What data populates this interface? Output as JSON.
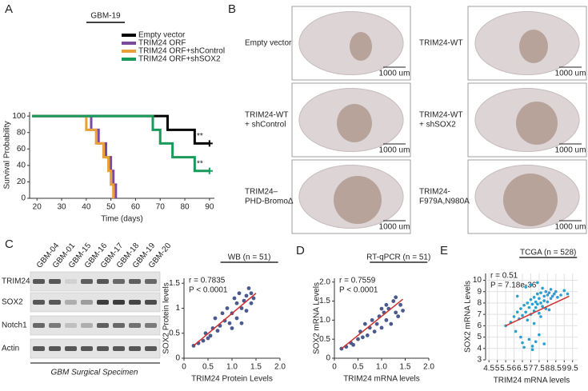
{
  "panels": [
    "A",
    "B",
    "C",
    "D",
    "E"
  ],
  "chart_data": [
    {
      "type": "line",
      "step": "post",
      "title": "GBM-19",
      "x_label": "Time (days)",
      "y_label": "Survival Probability",
      "xlim": [
        17,
        92
      ],
      "xticks": [
        20,
        30,
        40,
        50,
        60,
        70,
        80,
        90
      ],
      "ylim": [
        0,
        105
      ],
      "yticks": [
        0,
        20,
        40,
        60,
        80,
        100
      ],
      "grid": false,
      "legend": "above right",
      "series": [
        {
          "name": "Empty vector",
          "color": "#000000",
          "x": [
            18,
            73,
            84,
            90
          ],
          "values": [
            100,
            83.3,
            66.7,
            66.7
          ],
          "annotation": "**"
        },
        {
          "name": "TRIM24 ORF",
          "color": "#7b4a9a",
          "x": [
            18,
            42,
            45,
            48,
            50,
            51,
            52
          ],
          "values": [
            100,
            83.3,
            66.7,
            50,
            33.3,
            16.7,
            0
          ]
        },
        {
          "name": "TRIM24 ORF+shControl",
          "color": "#e8a03c",
          "x": [
            18,
            40,
            44,
            47,
            49,
            50,
            51
          ],
          "values": [
            100,
            83.3,
            66.7,
            50,
            33.3,
            16.7,
            0
          ]
        },
        {
          "name": "TRIM24 ORF+shSOX2",
          "color": "#1a9a5a",
          "x": [
            18,
            67,
            70,
            75,
            84,
            90
          ],
          "values": [
            100,
            83.3,
            66.7,
            50,
            33.3,
            33.3
          ],
          "annotation": "**"
        }
      ]
    },
    {
      "type": "scatter",
      "title": "WB (n = 51)",
      "stats": [
        "r = 0.7835",
        "P < 0.0001"
      ],
      "x_label": "TRIM24 Protein Levels",
      "y_label": "SOX2 Protein levels",
      "xlim": [
        0,
        2
      ],
      "xticks": [
        0,
        0.5,
        {
          "value": 1,
          "label": "1.0"
        },
        1.5,
        {
          "value": 2,
          "label": "2.0"
        }
      ],
      "ylim": [
        0,
        1.6
      ],
      "yticks": [
        0,
        0.5,
        1,
        1.5
      ],
      "grid": false,
      "color": "#4a5a8c",
      "x": [
        0.2,
        0.3,
        0.4,
        0.45,
        0.5,
        0.55,
        0.6,
        0.7,
        0.75,
        0.8,
        0.85,
        0.9,
        0.95,
        1.0,
        1.05,
        1.1,
        1.1,
        1.15,
        1.2,
        1.2,
        1.25,
        1.3,
        1.3,
        1.35,
        1.4,
        1.4,
        1.45,
        1.0,
        0.65
      ],
      "values": [
        0.25,
        0.3,
        0.35,
        0.5,
        0.4,
        0.45,
        0.6,
        0.55,
        0.65,
        0.9,
        0.75,
        1.0,
        0.7,
        0.9,
        1.2,
        0.8,
        1.1,
        1.3,
        1.0,
        0.7,
        1.15,
        1.25,
        0.95,
        1.4,
        1.1,
        1.3,
        1.2,
        0.6,
        0.8
      ],
      "fit": {
        "color": "#d03030",
        "x": [
          0.2,
          1.5
        ],
        "y": [
          0.25,
          1.3
        ]
      }
    },
    {
      "type": "scatter",
      "title": "RT-qPCR (n = 51)",
      "stats": [
        "r = 0.7559",
        "P < 0.0001"
      ],
      "x_label": "TRIM24 mRNA levels",
      "y_label": "SOX2 mRNA Levels",
      "xlim": [
        0,
        2
      ],
      "xticks": [
        0,
        0.5,
        {
          "value": 1,
          "label": "1.0"
        },
        1.5,
        {
          "value": 2,
          "label": "2.0"
        }
      ],
      "ylim": [
        0,
        2.1
      ],
      "yticks": [
        0,
        0.5,
        {
          "value": 1,
          "label": "1.0"
        },
        1.5,
        {
          "value": 2,
          "label": "2.0"
        }
      ],
      "grid": false,
      "color": "#4a5a8c",
      "x": [
        0.15,
        0.25,
        0.35,
        0.4,
        0.5,
        0.55,
        0.6,
        0.7,
        0.75,
        0.8,
        0.85,
        0.9,
        0.95,
        1.0,
        1.05,
        1.1,
        1.1,
        1.15,
        1.2,
        1.25,
        1.3,
        1.3,
        1.35,
        1.4,
        1.45,
        1.0,
        0.65
      ],
      "values": [
        0.25,
        0.3,
        0.4,
        0.35,
        0.5,
        0.7,
        0.55,
        0.6,
        0.8,
        1.0,
        0.7,
        0.9,
        1.1,
        0.8,
        1.2,
        1.0,
        1.4,
        1.3,
        0.9,
        1.5,
        1.2,
        1.6,
        1.1,
        1.4,
        1.25,
        1.3,
        0.9
      ],
      "fit": {
        "color": "#d03030",
        "x": [
          0.15,
          1.45
        ],
        "y": [
          0.25,
          1.55
        ]
      }
    },
    {
      "type": "scatter",
      "title": "TCGA (n = 528)",
      "stats": [
        "r = 0.51",
        "P = 7.18e-36"
      ],
      "x_label": "TRIM24 mRNA levels",
      "y_label": "SOX2 mRNA Levels",
      "xlim": [
        4.3,
        9.8
      ],
      "xticks": [
        4.5,
        5,
        5.5,
        6,
        6.5,
        7,
        7.5,
        8,
        8.5,
        9,
        9.5
      ],
      "ylim": [
        3,
        10.6
      ],
      "yticks": [
        3,
        4,
        5,
        6,
        7,
        8,
        9,
        10
      ],
      "grid": true,
      "color": "#2a9fd0",
      "x": [
        5.5,
        5.8,
        6.0,
        6.1,
        6.2,
        6.3,
        6.4,
        6.5,
        6.5,
        6.6,
        6.7,
        6.8,
        6.8,
        6.9,
        7.0,
        7.0,
        7.1,
        7.1,
        7.2,
        7.2,
        7.3,
        7.3,
        7.4,
        7.4,
        7.5,
        7.5,
        7.6,
        7.6,
        7.7,
        7.7,
        7.8,
        7.8,
        7.9,
        7.9,
        8.0,
        8.0,
        8.1,
        8.2,
        8.2,
        8.3,
        8.4,
        8.5,
        8.6,
        8.8,
        9.0,
        9.2,
        6.4,
        6.6,
        6.9,
        7.1,
        7.3,
        7.5,
        7.8,
        6.7,
        7.0,
        7.4,
        6.2,
        7.6,
        8.1,
        7.2
      ],
      "values": [
        6.0,
        6.3,
        6.8,
        5.5,
        7.2,
        6.6,
        7.5,
        6.9,
        4.5,
        7.8,
        7.2,
        8.0,
        6.5,
        7.6,
        8.3,
        7.0,
        7.9,
        4.2,
        8.5,
        7.3,
        8.1,
        7.6,
        8.8,
        7.9,
        8.4,
        7.1,
        8.9,
        8.0,
        9.3,
        7.7,
        8.6,
        8.2,
        9.0,
        7.5,
        8.7,
        8.1,
        8.9,
        9.2,
        8.4,
        8.6,
        8.8,
        9.0,
        8.5,
        8.7,
        9.1,
        8.8,
        5.0,
        4.1,
        4.8,
        3.9,
        4.6,
        5.2,
        4.4,
        9.4,
        9.6,
        9.8,
        8.6,
        6.8,
        7.4,
        6.2
      ],
      "fit": {
        "color": "#d03030",
        "x": [
          5.5,
          9.3
        ],
        "y": [
          6.0,
          8.6
        ]
      }
    }
  ],
  "brain_images": {
    "scale_bar": "1000 um",
    "items": [
      {
        "label": [
          "Empty vector"
        ]
      },
      {
        "label": [
          "TRIM24-WT"
        ]
      },
      {
        "label": [
          "TRIM24-WT",
          "+ shControl"
        ]
      },
      {
        "label": [
          "TRIM24-WT",
          "+ shSOX2"
        ]
      },
      {
        "label": [
          "TRIM24–",
          "PHD-BromoΔ"
        ]
      },
      {
        "label": [
          "TRIM24-",
          "F979A,N980A"
        ]
      }
    ]
  },
  "blot": {
    "lanes": [
      "GBM-04",
      "GBM-01",
      "GBM-15",
      "GBM-16",
      "GBM-17",
      "GBM-18",
      "GBM-19",
      "GBM-20"
    ],
    "rows": [
      "TRIM24",
      "SOX2",
      "Notch1",
      "Actin"
    ],
    "caption": "GBM Surgical Specimen"
  }
}
